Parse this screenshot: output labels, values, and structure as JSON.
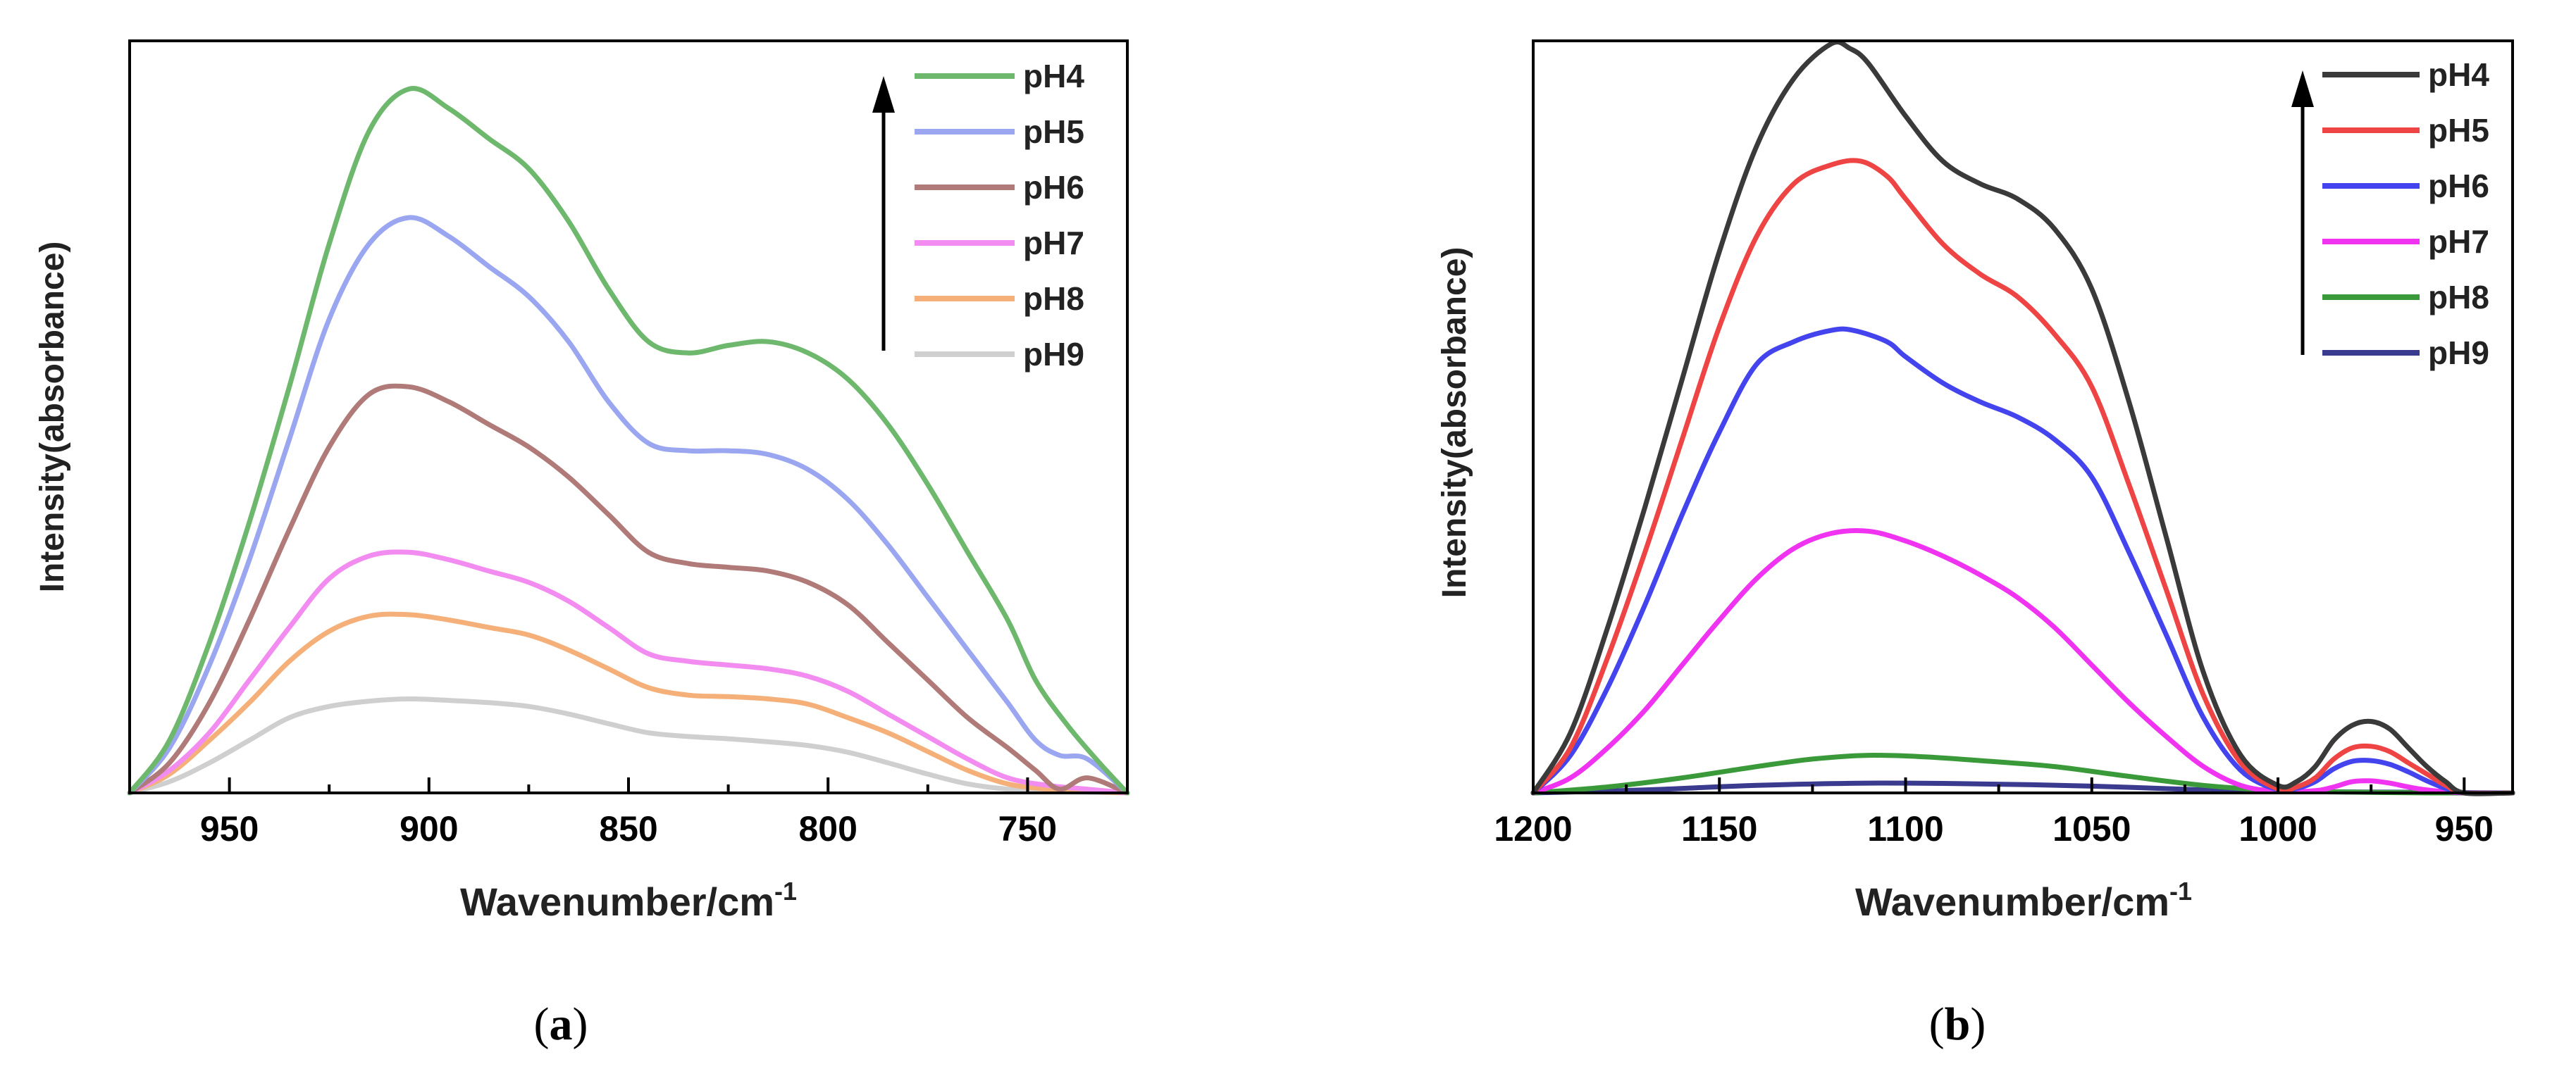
{
  "chart_data": [
    {
      "type": "line",
      "panel": "a",
      "caption": "a",
      "xlabel": "Wavenumber/cm",
      "xlabel_sup": "-1",
      "ylabel": "Intensity(absorbance)",
      "xlim": [
        975,
        725
      ],
      "ylim": [
        0,
        1.0
      ],
      "xticks": [
        950,
        900,
        850,
        800,
        750
      ],
      "xtick_labels": [
        "950",
        "900",
        "850",
        "800",
        "750"
      ],
      "legend_position": "top-right",
      "legend_arrow": "up",
      "series": [
        {
          "name": "pH4",
          "color": "#6db86d",
          "x": [
            975,
            965,
            955,
            945,
            935,
            925,
            915,
            905,
            895,
            885,
            875,
            865,
            855,
            845,
            835,
            825,
            815,
            805,
            795,
            785,
            775,
            765,
            755,
            748,
            740,
            732,
            725
          ],
          "y": [
            0.0,
            0.07,
            0.2,
            0.36,
            0.54,
            0.73,
            0.88,
            0.936,
            0.91,
            0.87,
            0.83,
            0.76,
            0.67,
            0.6,
            0.585,
            0.595,
            0.6,
            0.585,
            0.55,
            0.49,
            0.41,
            0.32,
            0.23,
            0.15,
            0.09,
            0.04,
            0.0
          ]
        },
        {
          "name": "pH5",
          "color": "#9aa6f0",
          "x": [
            975,
            965,
            955,
            945,
            935,
            925,
            915,
            905,
            895,
            885,
            875,
            865,
            855,
            845,
            835,
            825,
            815,
            805,
            795,
            785,
            775,
            765,
            755,
            748,
            742,
            735,
            725
          ],
          "y": [
            0.0,
            0.06,
            0.17,
            0.31,
            0.47,
            0.63,
            0.73,
            0.765,
            0.74,
            0.7,
            0.66,
            0.6,
            0.52,
            0.465,
            0.455,
            0.455,
            0.45,
            0.43,
            0.39,
            0.33,
            0.26,
            0.19,
            0.12,
            0.07,
            0.05,
            0.045,
            0.0
          ]
        },
        {
          "name": "pH6",
          "color": "#b07a78",
          "x": [
            975,
            965,
            955,
            945,
            935,
            925,
            915,
            905,
            895,
            885,
            875,
            865,
            855,
            845,
            835,
            825,
            815,
            805,
            795,
            785,
            775,
            765,
            755,
            748,
            742,
            735,
            725
          ],
          "y": [
            0.0,
            0.04,
            0.12,
            0.23,
            0.35,
            0.46,
            0.53,
            0.54,
            0.52,
            0.49,
            0.46,
            0.42,
            0.37,
            0.32,
            0.305,
            0.3,
            0.295,
            0.28,
            0.25,
            0.2,
            0.15,
            0.1,
            0.06,
            0.03,
            0.005,
            0.02,
            0.0
          ]
        },
        {
          "name": "pH7",
          "color": "#f38cf0",
          "x": [
            975,
            965,
            955,
            945,
            935,
            925,
            915,
            905,
            895,
            885,
            875,
            865,
            855,
            845,
            835,
            825,
            815,
            805,
            795,
            785,
            775,
            765,
            755,
            745,
            735,
            725
          ],
          "y": [
            0.0,
            0.03,
            0.08,
            0.15,
            0.22,
            0.285,
            0.315,
            0.32,
            0.31,
            0.295,
            0.28,
            0.255,
            0.22,
            0.185,
            0.175,
            0.17,
            0.165,
            0.155,
            0.135,
            0.105,
            0.075,
            0.045,
            0.02,
            0.01,
            0.005,
            0.0
          ]
        },
        {
          "name": "pH8",
          "color": "#f5b07a",
          "x": [
            975,
            965,
            955,
            945,
            935,
            925,
            915,
            905,
            895,
            885,
            875,
            865,
            855,
            845,
            835,
            825,
            815,
            805,
            795,
            785,
            775,
            765,
            755,
            745,
            735,
            725
          ],
          "y": [
            0.0,
            0.025,
            0.07,
            0.12,
            0.175,
            0.215,
            0.235,
            0.237,
            0.23,
            0.22,
            0.21,
            0.19,
            0.165,
            0.14,
            0.13,
            0.128,
            0.125,
            0.118,
            0.1,
            0.08,
            0.055,
            0.03,
            0.012,
            0.005,
            0.002,
            0.0
          ]
        },
        {
          "name": "pH9",
          "color": "#cfcfcf",
          "x": [
            975,
            965,
            955,
            945,
            935,
            925,
            915,
            905,
            895,
            885,
            875,
            865,
            855,
            845,
            835,
            825,
            815,
            805,
            795,
            785,
            775,
            765,
            755,
            745,
            735,
            725
          ],
          "y": [
            0.0,
            0.015,
            0.04,
            0.07,
            0.1,
            0.115,
            0.122,
            0.125,
            0.123,
            0.12,
            0.115,
            0.105,
            0.092,
            0.08,
            0.075,
            0.072,
            0.068,
            0.063,
            0.054,
            0.04,
            0.025,
            0.012,
            0.005,
            0.002,
            0.001,
            0.0
          ]
        }
      ]
    },
    {
      "type": "line",
      "panel": "b",
      "caption": "b",
      "xlabel": "Wavenumber/cm",
      "xlabel_sup": "-1",
      "ylabel": "Intensity(absorbance)",
      "xlim": [
        1200,
        937
      ],
      "ylim": [
        0,
        1.0
      ],
      "xticks": [
        1200,
        1150,
        1100,
        1050,
        1000,
        950
      ],
      "xtick_labels": [
        "1200",
        "1150",
        "1100",
        "1050",
        "1000",
        "950"
      ],
      "legend_position": "top-right",
      "legend_arrow": "up",
      "series": [
        {
          "name": "pH4",
          "color": "#3a3a3a",
          "x": [
            1200,
            1190,
            1180,
            1170,
            1160,
            1150,
            1140,
            1130,
            1120,
            1115,
            1110,
            1100,
            1090,
            1080,
            1070,
            1060,
            1050,
            1040,
            1030,
            1020,
            1010,
            1000,
            995,
            990,
            985,
            980,
            975,
            970,
            965,
            960,
            955,
            950,
            937
          ],
          "y": [
            0.0,
            0.08,
            0.22,
            0.38,
            0.55,
            0.72,
            0.86,
            0.95,
            0.996,
            0.99,
            0.97,
            0.9,
            0.84,
            0.81,
            0.79,
            0.75,
            0.67,
            0.52,
            0.34,
            0.16,
            0.05,
            0.01,
            0.015,
            0.035,
            0.07,
            0.09,
            0.095,
            0.085,
            0.06,
            0.035,
            0.015,
            0.0,
            0.0
          ]
        },
        {
          "name": "pH5",
          "color": "#ee4444",
          "x": [
            1200,
            1190,
            1180,
            1170,
            1160,
            1150,
            1140,
            1130,
            1120,
            1112,
            1105,
            1100,
            1090,
            1080,
            1070,
            1060,
            1050,
            1040,
            1030,
            1020,
            1010,
            1000,
            995,
            990,
            985,
            980,
            975,
            970,
            965,
            960,
            955,
            950,
            937
          ],
          "y": [
            0.0,
            0.06,
            0.18,
            0.32,
            0.47,
            0.62,
            0.74,
            0.81,
            0.835,
            0.84,
            0.82,
            0.79,
            0.73,
            0.69,
            0.66,
            0.61,
            0.54,
            0.41,
            0.27,
            0.13,
            0.04,
            0.005,
            0.008,
            0.02,
            0.045,
            0.06,
            0.062,
            0.055,
            0.04,
            0.025,
            0.01,
            0.0,
            0.0
          ]
        },
        {
          "name": "pH6",
          "color": "#4444ee",
          "x": [
            1200,
            1190,
            1180,
            1170,
            1160,
            1150,
            1140,
            1130,
            1120,
            1114,
            1105,
            1100,
            1090,
            1080,
            1070,
            1060,
            1050,
            1040,
            1030,
            1020,
            1010,
            1000,
            995,
            990,
            985,
            980,
            975,
            970,
            965,
            960,
            955,
            950,
            937
          ],
          "y": [
            0.0,
            0.05,
            0.14,
            0.25,
            0.37,
            0.48,
            0.57,
            0.6,
            0.615,
            0.615,
            0.6,
            0.58,
            0.545,
            0.52,
            0.5,
            0.47,
            0.42,
            0.32,
            0.21,
            0.1,
            0.03,
            0.004,
            0.006,
            0.015,
            0.032,
            0.042,
            0.043,
            0.038,
            0.028,
            0.016,
            0.006,
            0.0,
            0.0
          ]
        },
        {
          "name": "pH7",
          "color": "#f033f0",
          "x": [
            1200,
            1190,
            1180,
            1170,
            1160,
            1150,
            1140,
            1130,
            1120,
            1110,
            1100,
            1090,
            1080,
            1070,
            1060,
            1050,
            1040,
            1030,
            1020,
            1010,
            1000,
            990,
            985,
            980,
            975,
            970,
            965,
            960,
            950,
            937
          ],
          "y": [
            0.0,
            0.02,
            0.06,
            0.11,
            0.17,
            0.23,
            0.285,
            0.325,
            0.345,
            0.348,
            0.335,
            0.315,
            0.29,
            0.26,
            0.22,
            0.17,
            0.12,
            0.075,
            0.035,
            0.01,
            0.002,
            0.003,
            0.008,
            0.015,
            0.016,
            0.013,
            0.008,
            0.004,
            0.0,
            0.0
          ]
        },
        {
          "name": "pH8",
          "color": "#3a9a3a",
          "x": [
            1200,
            1180,
            1160,
            1140,
            1125,
            1110,
            1095,
            1080,
            1060,
            1040,
            1020,
            1000,
            980,
            960,
            937
          ],
          "y": [
            0.0,
            0.008,
            0.02,
            0.035,
            0.045,
            0.05,
            0.048,
            0.043,
            0.035,
            0.022,
            0.01,
            0.003,
            0.001,
            0.0,
            0.0
          ]
        },
        {
          "name": "pH9",
          "color": "#3a3a8f",
          "x": [
            1200,
            1170,
            1140,
            1110,
            1080,
            1050,
            1020,
            1000,
            970,
            937
          ],
          "y": [
            0.0,
            0.004,
            0.01,
            0.013,
            0.012,
            0.009,
            0.004,
            0.002,
            0.001,
            0.0
          ]
        }
      ]
    }
  ]
}
